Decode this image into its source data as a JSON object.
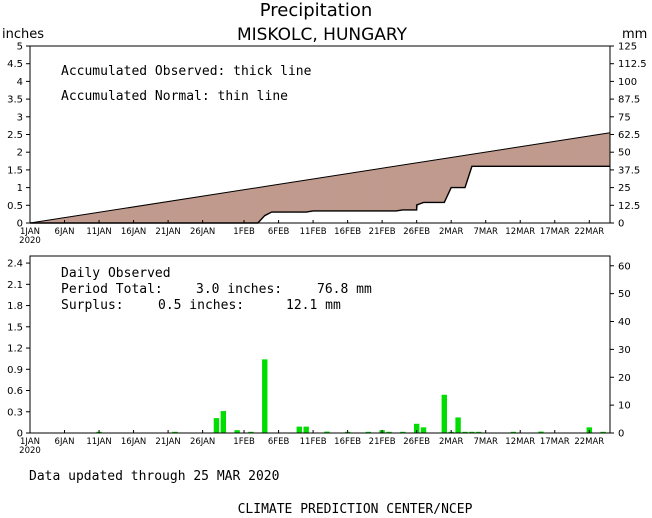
{
  "header": {
    "title": "Precipitation",
    "location": "MISKOLC, HUNGARY",
    "left_unit": "inches",
    "right_unit": "mm"
  },
  "top_panel": {
    "legend_observed": "Accumulated Observed: thick line",
    "legend_normal": "Accumulated Normal: thin line"
  },
  "bottom_panel": {
    "label": "Daily Observed",
    "period_total_label": "Period Total:",
    "period_total_in": "3.0 inches:",
    "period_total_mm": "76.8 mm",
    "surplus_label": "Surplus:",
    "surplus_in": "0.5 inches:",
    "surplus_mm": "12.1 mm"
  },
  "footer": {
    "updated": "Data updated through 25 MAR 2020",
    "credit": "CLIMATE PREDICTION CENTER/NCEP"
  },
  "colors": {
    "surplus_fill": "#99ff99",
    "deficit_fill": "#c19a8e",
    "bar_fill": "#00dd00",
    "line": "#000000"
  },
  "chart_data": [
    {
      "type": "area",
      "x_unit": "day (1 = 1 JAN 2020)",
      "x_tick_labels": [
        "1JAN",
        "6JAN",
        "11JAN",
        "16JAN",
        "21JAN",
        "26JAN",
        "1FEB",
        "6FEB",
        "11FEB",
        "16FEB",
        "21FEB",
        "26FEB",
        "2MAR",
        "7MAR",
        "12MAR",
        "17MAR",
        "22MAR"
      ],
      "x_tick_days": [
        1,
        6,
        11,
        16,
        21,
        26,
        32,
        37,
        42,
        47,
        52,
        57,
        62,
        67,
        72,
        77,
        82
      ],
      "x_year_label": "2020",
      "xlim": [
        1,
        85
      ],
      "ylim": [
        0,
        5
      ],
      "ylim_mm": [
        0,
        125
      ],
      "y_ticks": [
        "0",
        "0.5",
        "1",
        "1.5",
        "2",
        "2.5",
        "3",
        "3.5",
        "4",
        "4.5",
        "5"
      ],
      "y_ticks_mm": [
        "0",
        "12.5",
        "25",
        "37.5",
        "50",
        "62.5",
        "75",
        "87.5",
        "100",
        "112.5",
        "125"
      ],
      "series": [
        {
          "x": [
            1,
            35,
            85
          ],
          "y": [
            0,
            1.03,
            2.55
          ]
        },
        {
          "x": [
            1,
            34,
            35,
            35,
            36,
            41,
            42,
            45,
            54,
            55,
            57,
            57,
            58,
            60,
            61,
            62,
            63,
            64,
            65,
            66,
            80,
            81,
            84,
            85
          ],
          "y": [
            0,
            0,
            0.21,
            0.21,
            0.31,
            0.31,
            0.34,
            0.34,
            0.34,
            0.37,
            0.37,
            0.51,
            0.58,
            0.58,
            0.58,
            1.0,
            1.0,
            1.0,
            1.6,
            1.6,
            1.6,
            1.6,
            1.6,
            1.6
          ]
        }
      ]
    },
    {
      "type": "bar",
      "x_tick_labels": [
        "1JAN",
        "6JAN",
        "11JAN",
        "16JAN",
        "21JAN",
        "26JAN",
        "1FEB",
        "6FEB",
        "11FEB",
        "16FEB",
        "21FEB",
        "26FEB",
        "2MAR",
        "7MAR",
        "12MAR",
        "17MAR",
        "22MAR"
      ],
      "x_tick_days": [
        1,
        6,
        11,
        16,
        21,
        26,
        32,
        37,
        42,
        47,
        52,
        57,
        62,
        67,
        72,
        77,
        82
      ],
      "x_year_label": "2020",
      "xlim": [
        1,
        85
      ],
      "ylim": [
        0,
        2.5
      ],
      "ylim_mm": [
        0,
        63.5
      ],
      "y_ticks": [
        "0",
        "0.3",
        "0.6",
        "0.9",
        "1.2",
        "1.5",
        "1.8",
        "2.1",
        "2.4"
      ],
      "y_ticks_mm": [
        "0",
        "10",
        "20",
        "30",
        "40",
        "50",
        "60"
      ],
      "days": [
        11,
        22,
        28,
        29,
        31,
        33,
        35,
        40,
        41,
        44,
        47,
        50,
        52,
        53,
        55,
        57,
        58,
        61,
        62,
        63,
        64,
        65,
        66,
        71,
        75,
        82,
        84
      ],
      "values": [
        0.01,
        0.01,
        0.21,
        0.31,
        0.04,
        0.01,
        1.04,
        0.09,
        0.09,
        0.02,
        0.01,
        0.01,
        0.04,
        0.01,
        0.01,
        0.13,
        0.08,
        0.54,
        0.01,
        0.22,
        0.01,
        0.01,
        0.01,
        0.01,
        0.02,
        0.08,
        0.01
      ]
    }
  ]
}
